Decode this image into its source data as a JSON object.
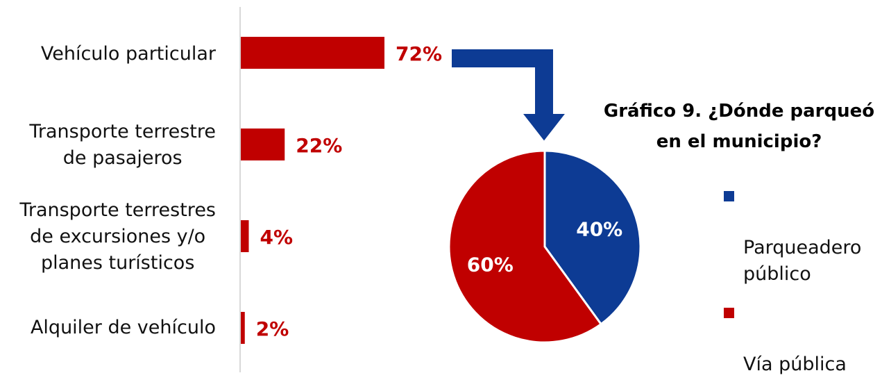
{
  "colors": {
    "red": "#c00000",
    "blue": "#0d3b94",
    "axis": "#cccccc",
    "text": "#111111"
  },
  "chart_data": [
    {
      "type": "bar",
      "orientation": "horizontal",
      "title": "",
      "categories": [
        "Vehículo particular",
        "Transporte terrestre\nde pasajeros",
        "Transporte terrestres\nde excursiones y/o\nplanes turísticos",
        "Alquiler de vehículo"
      ],
      "values": [
        72,
        22,
        4,
        2
      ],
      "value_labels": [
        "72%",
        "22%",
        "4%",
        "2%"
      ],
      "unit": "%",
      "grid": false
    },
    {
      "type": "pie",
      "title": "Gráfico 9. ¿Dónde parqueó\nen el municipio?",
      "labels": [
        "Parqueadero\npúblico",
        "Vía pública"
      ],
      "values": [
        40,
        60
      ],
      "value_labels": [
        "40%",
        "60%"
      ],
      "legend_position": "right"
    }
  ]
}
